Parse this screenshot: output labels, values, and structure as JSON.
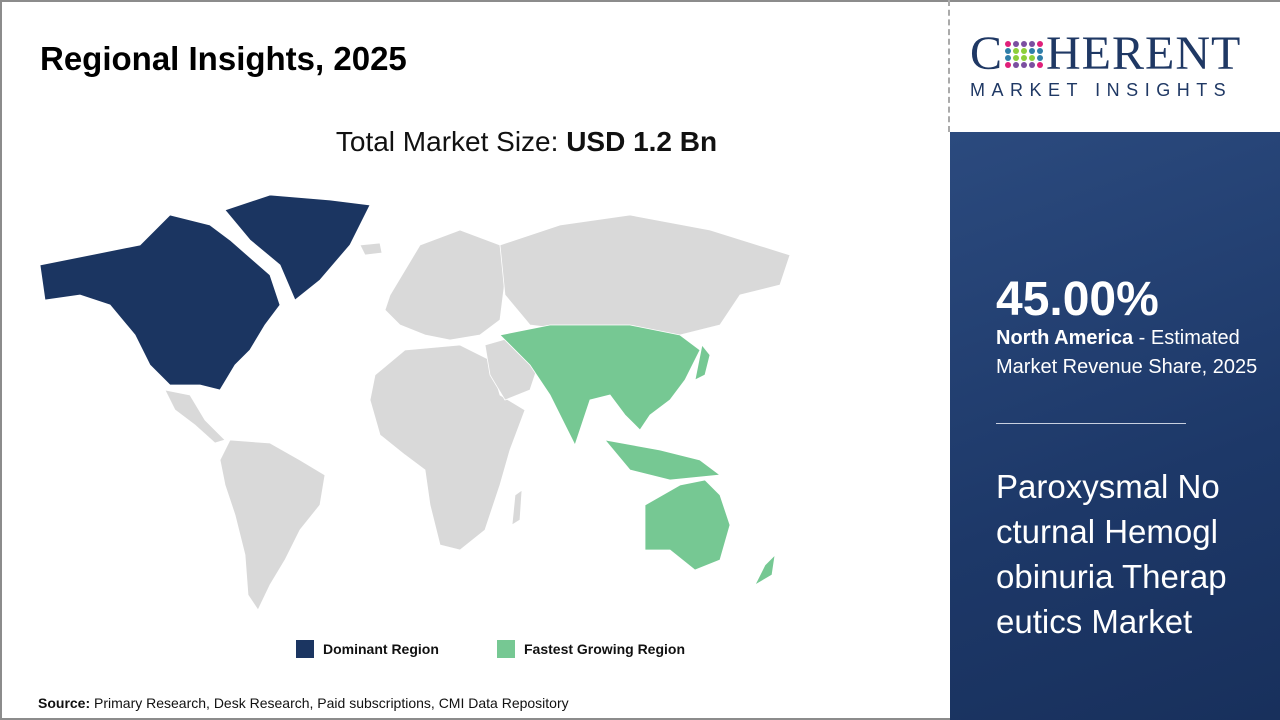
{
  "header": {
    "title": "Regional Insights, 2025"
  },
  "market_size": {
    "label": "Total Market Size:",
    "value": "USD 1.2 Bn"
  },
  "legend": [
    {
      "label": "Dominant Region",
      "color": "#1b3561"
    },
    {
      "label": "Fastest Growing Region",
      "color": "#76c893"
    }
  ],
  "map": {
    "dominant_region": "North America",
    "fastest_growing_region": "Asia Pacific",
    "other_color": "#d9d9d9"
  },
  "source": {
    "label": "Source:",
    "text": "Primary Research, Desk Research, Paid subscriptions, CMI Data Repository"
  },
  "logo": {
    "word1": "C",
    "word2": "HERENT",
    "tagline": "MARKET INSIGHTS"
  },
  "panel": {
    "percent": "45.00%",
    "region": "North America",
    "desc": " - Estimated Market Revenue Share, 2025",
    "product": "Paroxysmal Nocturnal Hemoglobinuria Therapeutics Market"
  }
}
